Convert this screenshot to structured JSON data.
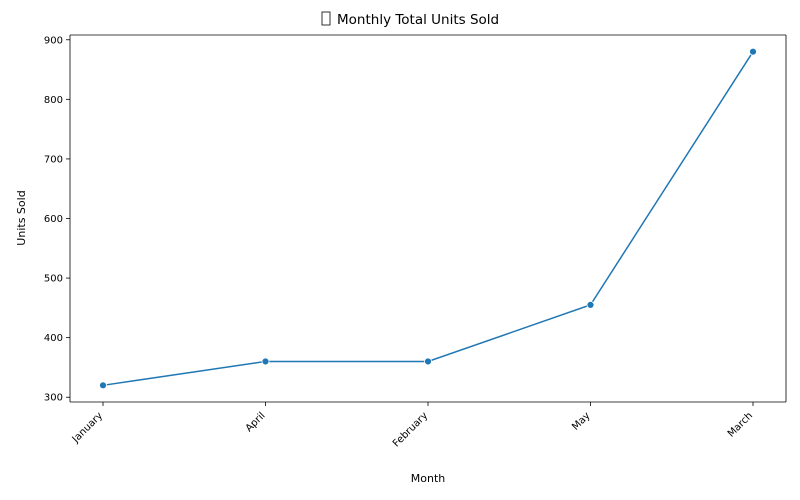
{
  "chart_data": {
    "type": "line",
    "title": "Monthly Total Units Sold",
    "title_icon": "missing-glyph-box",
    "xlabel": "Month",
    "ylabel": "Units Sold",
    "categories": [
      "January",
      "April",
      "February",
      "May",
      "March"
    ],
    "series": [
      {
        "values": [
          320,
          360,
          360,
          455,
          880
        ]
      }
    ],
    "yticks": [
      300,
      400,
      500,
      600,
      700,
      800,
      900
    ],
    "ylim": [
      292,
      908
    ],
    "grid": false,
    "line_color": "#1f77b4"
  }
}
